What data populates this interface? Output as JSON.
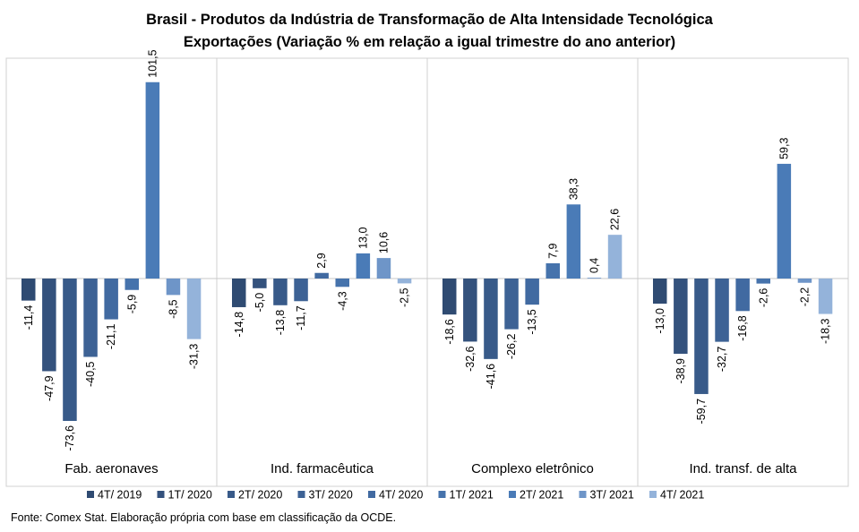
{
  "chart_data": {
    "type": "bar",
    "title": "Brasil - Produtos da Indústria de Transformação  de Alta Intensidade Tecnológica",
    "subtitle": "Exportações  (Variação % em relação a igual trimestre do ano anterior)",
    "categories": [
      "Fab. aeronaves",
      "Ind. farmacêutica",
      "Complexo eletrônico",
      "Ind. transf. de alta"
    ],
    "series": [
      {
        "name": "4T/ 2019",
        "color": "#2f4b72",
        "values": [
          -11.4,
          -14.8,
          -18.6,
          -13.0
        ],
        "labels": [
          "-11,4",
          "-14,8",
          "-18,6",
          "-13,0"
        ]
      },
      {
        "name": "1T/ 2020",
        "color": "#34527d",
        "values": [
          -47.9,
          -5.0,
          -32.6,
          -38.9
        ],
        "labels": [
          "-47,9",
          "-5,0",
          "-32,6",
          "-38,9"
        ]
      },
      {
        "name": "2T/ 2020",
        "color": "#385a89",
        "values": [
          -73.6,
          -13.8,
          -41.6,
          -59.7
        ],
        "labels": [
          "-73,6",
          "-13,8",
          "-41,6",
          "-59,7"
        ]
      },
      {
        "name": "3T/ 2020",
        "color": "#3d6295",
        "values": [
          -40.5,
          -11.7,
          -26.2,
          -32.7
        ],
        "labels": [
          "-40,5",
          "-11,7",
          "-26,2",
          "-32,7"
        ]
      },
      {
        "name": "4T/ 2020",
        "color": "#416aa1",
        "values": [
          -21.1,
          2.9,
          -13.5,
          -16.8
        ],
        "labels": [
          "-21,1",
          "2,9",
          "-13,5",
          "-16,8"
        ]
      },
      {
        "name": "1T/ 2021",
        "color": "#4673ac",
        "values": [
          -5.9,
          -4.3,
          7.9,
          -2.6
        ],
        "labels": [
          "-5,9",
          "-4,3",
          "7,9",
          "-2,6"
        ]
      },
      {
        "name": "2T/ 2021",
        "color": "#4a7bb7",
        "values": [
          101.5,
          13.0,
          38.3,
          59.3
        ],
        "labels": [
          "101,5",
          "13,0",
          "38,3",
          "59,3"
        ]
      },
      {
        "name": "3T/ 2021",
        "color": "#6e95c8",
        "values": [
          -8.5,
          10.6,
          0.4,
          -2.2
        ],
        "labels": [
          "-8,5",
          "10,6",
          "0,4",
          "-2,2"
        ]
      },
      {
        "name": "4T/ 2021",
        "color": "#94b3da",
        "values": [
          -31.3,
          -2.5,
          22.6,
          -18.3
        ],
        "labels": [
          "-31,3",
          "-2,5",
          "22,6",
          "-18,3"
        ]
      }
    ],
    "ylim": [
      -80,
      110
    ],
    "grid": false,
    "legend": "bottom"
  },
  "source": "Fonte: Comex Stat. Elaboração própria com base em classificação da OCDE."
}
